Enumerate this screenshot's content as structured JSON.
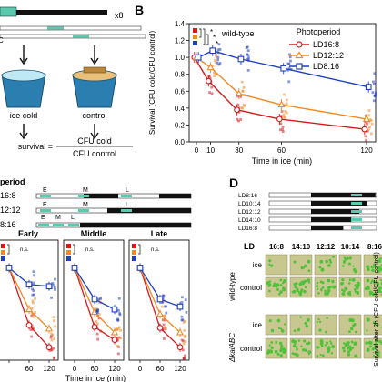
{
  "panel_labels": {
    "b": "B",
    "d": "D"
  },
  "panel_a": {
    "multiplier": "x8",
    "cup_ice_label": "ice cold",
    "cup_control_label": "control",
    "formula_lhs": "survival =",
    "formula_num": "CFU cold",
    "formula_den": "CFU control"
  },
  "panel_b": {
    "legend_title": "Photoperiod",
    "wild_type_label": "wild-type",
    "sig_marks": [
      "*",
      "*",
      "*"
    ],
    "legend": [
      "LD16:8",
      "LD12:12",
      "LD8:16"
    ]
  },
  "panel_c": {
    "header": "period",
    "rows": [
      "16:8",
      "12:12",
      "8:16"
    ],
    "markers": [
      "E",
      "M",
      "L"
    ],
    "subpanels": [
      "Early",
      "Middle",
      "Late"
    ],
    "ns": "n.s.",
    "xlabel": "Time in ice (min)",
    "xticks": [
      "60",
      "120",
      "0",
      "60",
      "120",
      "0",
      "60",
      "120"
    ]
  },
  "panel_d": {
    "cycles": [
      "LD8:16",
      "LD10:14",
      "LD12:12",
      "LD14:10",
      "LD16:8"
    ],
    "ld_label": "LD",
    "ld_columns": [
      "16:8",
      "14:10",
      "12:12",
      "10:14",
      "8:16"
    ],
    "row_labels": [
      "ice",
      "control",
      "ice",
      "control"
    ],
    "strain_wt": "wild-type",
    "strain_mut": "ΔkaiABC",
    "ylabel": "Survival after 2h (CFU cold/CFU control)"
  },
  "colors": {
    "ld16": "#d7191c",
    "ld12": "#f08a24",
    "ld8": "#1f3fbf",
    "teal": "#5bc8b0",
    "plate_bg": "#c9c790",
    "colony": "#4fc23a"
  },
  "chart_data": [
    {
      "type": "line",
      "title": "",
      "xlabel": "Time in ice (min)",
      "ylabel": "Survival (CFU cold/CFU control)",
      "xlim": [
        0,
        120
      ],
      "ylim": [
        0,
        1.4
      ],
      "xticks": [
        0,
        10,
        30,
        60,
        120
      ],
      "yticks": [
        0,
        0.2,
        0.4,
        0.6,
        0.8,
        1.0,
        1.2,
        1.4
      ],
      "x": [
        0,
        10,
        30,
        60,
        120
      ],
      "legend_position": "top-right",
      "series": [
        {
          "name": "LD16:8",
          "color": "#d7191c",
          "marker": "circle",
          "values": [
            1.0,
            0.72,
            0.38,
            0.27,
            0.15
          ]
        },
        {
          "name": "LD12:12",
          "color": "#f08a24",
          "marker": "triangle",
          "values": [
            1.0,
            0.88,
            0.57,
            0.44,
            0.27
          ]
        },
        {
          "name": "LD8:16",
          "color": "#1f3fbf",
          "marker": "square",
          "values": [
            1.0,
            1.08,
            0.98,
            0.87,
            0.65
          ]
        }
      ]
    },
    {
      "type": "line",
      "xlabel": "Time in ice (min)",
      "x": [
        0,
        60,
        120
      ],
      "subpanels": [
        {
          "name": "Early",
          "series": [
            {
              "name": "LD16:8",
              "color": "#d7191c",
              "values": [
                1.0,
                0.38,
                0.14
              ]
            },
            {
              "name": "LD12:12",
              "color": "#f08a24",
              "values": [
                1.0,
                0.55,
                0.34
              ]
            },
            {
              "name": "LD8:16",
              "color": "#1f3fbf",
              "values": [
                1.0,
                0.82,
                0.8
              ]
            }
          ]
        },
        {
          "name": "Middle",
          "series": [
            {
              "name": "LD16:8",
              "color": "#d7191c",
              "values": [
                1.0,
                0.36,
                0.22
              ]
            },
            {
              "name": "LD12:12",
              "color": "#f08a24",
              "values": [
                1.0,
                0.52,
                0.3
              ]
            },
            {
              "name": "LD8:16",
              "color": "#1f3fbf",
              "values": [
                1.0,
                0.66,
                0.55
              ]
            }
          ]
        },
        {
          "name": "Late",
          "series": [
            {
              "name": "LD16:8",
              "color": "#d7191c",
              "values": [
                1.0,
                0.35,
                0.14
              ]
            },
            {
              "name": "LD12:12",
              "color": "#f08a24",
              "values": [
                1.0,
                0.5,
                0.3
              ]
            },
            {
              "name": "LD8:16",
              "color": "#1f3fbf",
              "values": [
                1.0,
                0.66,
                0.58
              ]
            }
          ]
        }
      ]
    }
  ]
}
